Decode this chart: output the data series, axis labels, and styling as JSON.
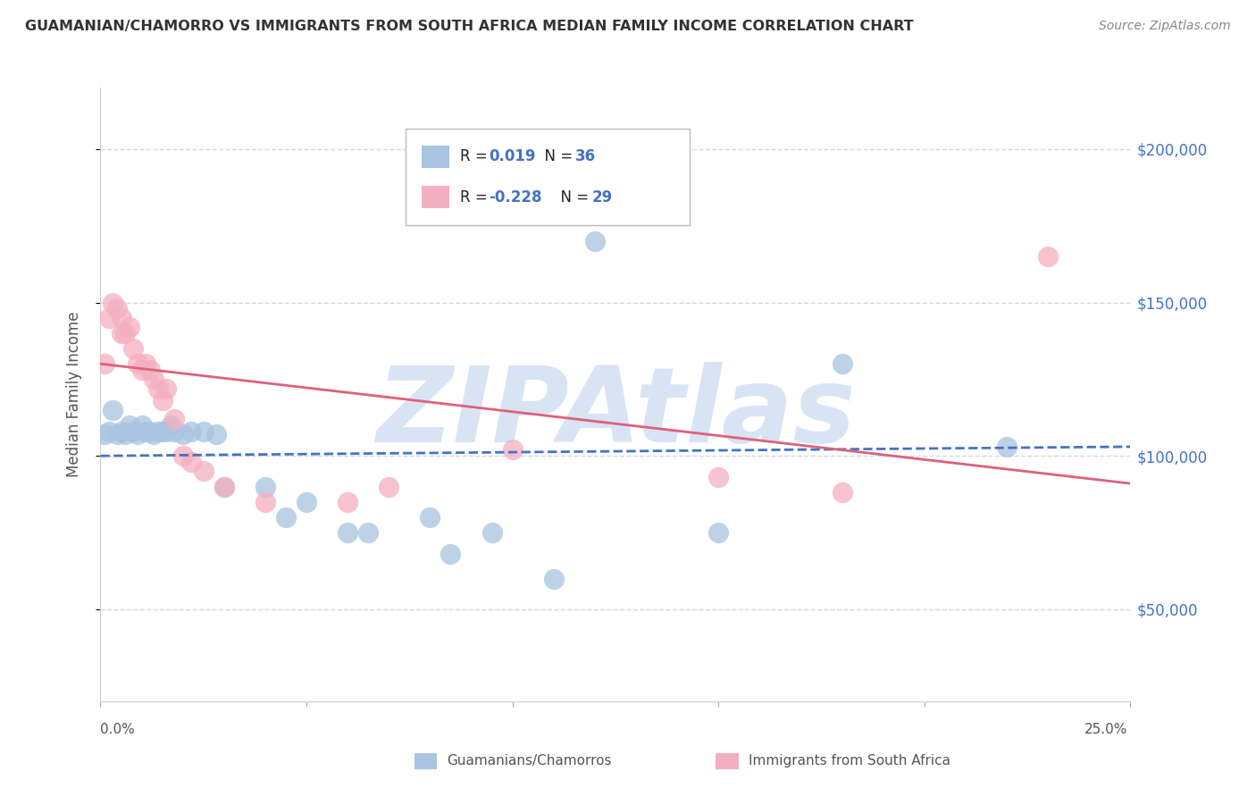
{
  "title": "GUAMANIAN/CHAMORRO VS IMMIGRANTS FROM SOUTH AFRICA MEDIAN FAMILY INCOME CORRELATION CHART",
  "source": "Source: ZipAtlas.com",
  "ylabel": "Median Family Income",
  "watermark": "ZIPAtlas",
  "blue_scatter_x": [
    0.001,
    0.002,
    0.003,
    0.004,
    0.005,
    0.006,
    0.007,
    0.008,
    0.009,
    0.01,
    0.011,
    0.012,
    0.013,
    0.014,
    0.015,
    0.016,
    0.017,
    0.018,
    0.02,
    0.022,
    0.025,
    0.028,
    0.03,
    0.04,
    0.045,
    0.05,
    0.06,
    0.065,
    0.08,
    0.085,
    0.095,
    0.11,
    0.12,
    0.15,
    0.18,
    0.22
  ],
  "blue_scatter_y": [
    107000,
    108000,
    115000,
    107000,
    108000,
    107000,
    110000,
    108000,
    107000,
    110000,
    108000,
    108000,
    107000,
    108000,
    108000,
    108000,
    110000,
    108000,
    107000,
    108000,
    108000,
    107000,
    90000,
    90000,
    80000,
    85000,
    75000,
    75000,
    80000,
    68000,
    75000,
    60000,
    170000,
    75000,
    130000,
    103000
  ],
  "pink_scatter_x": [
    0.001,
    0.002,
    0.003,
    0.004,
    0.005,
    0.005,
    0.006,
    0.007,
    0.008,
    0.009,
    0.01,
    0.011,
    0.012,
    0.013,
    0.014,
    0.015,
    0.016,
    0.018,
    0.02,
    0.022,
    0.025,
    0.03,
    0.04,
    0.06,
    0.07,
    0.1,
    0.15,
    0.18,
    0.23
  ],
  "pink_scatter_y": [
    130000,
    145000,
    150000,
    148000,
    145000,
    140000,
    140000,
    142000,
    135000,
    130000,
    128000,
    130000,
    128000,
    125000,
    122000,
    118000,
    122000,
    112000,
    100000,
    98000,
    95000,
    90000,
    85000,
    85000,
    90000,
    102000,
    93000,
    88000,
    165000
  ],
  "blue_trend_x": [
    0.0,
    0.25
  ],
  "blue_trend_y": [
    100000,
    103000
  ],
  "pink_trend_x": [
    0.0,
    0.25
  ],
  "pink_trend_y": [
    130000,
    91000
  ],
  "ytick_values": [
    50000,
    100000,
    150000,
    200000
  ],
  "ytick_labels": [
    "$50,000",
    "$100,000",
    "$150,000",
    "$200,000"
  ],
  "xlim": [
    0.0,
    0.25
  ],
  "ylim": [
    20000,
    220000
  ],
  "blue_scatter_color": "#a8c4e0",
  "pink_scatter_color": "#f4afc0",
  "blue_line_color": "#4472c4",
  "pink_line_color": "#e0607a",
  "right_label_color": "#4472c4",
  "grid_color": "#d0d8e8",
  "watermark_color": "#d8e4f4",
  "title_color": "#333333",
  "title_fontsize": 11.5,
  "source_fontsize": 10,
  "label_fontsize": 12,
  "legend_r_color": "#4472c4",
  "legend_n_color": "#222222"
}
